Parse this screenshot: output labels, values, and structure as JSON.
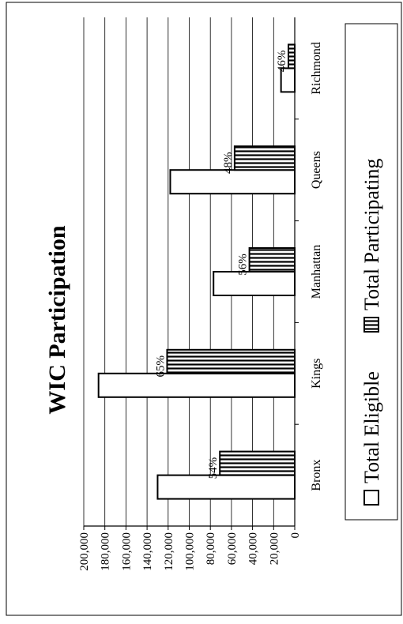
{
  "chart_data": {
    "type": "bar",
    "orientation": "rotated-90-ccw",
    "title": "WIC Participation",
    "categories": [
      "Bronx",
      "Kings",
      "Manhattan",
      "Queens",
      "Richmond"
    ],
    "series": [
      {
        "name": "Total Eligible",
        "values": [
          130000,
          186000,
          77000,
          118000,
          13000
        ]
      },
      {
        "name": "Total Participating",
        "values": [
          71000,
          121000,
          43000,
          57000,
          6000
        ]
      }
    ],
    "data_labels": [
      "54%",
      "65%",
      "56%",
      "48%",
      "46%"
    ],
    "ylim": [
      0,
      200000
    ],
    "yticks": [
      0,
      20000,
      40000,
      60000,
      80000,
      100000,
      120000,
      140000,
      160000,
      180000,
      200000
    ],
    "ytick_labels": [
      "0",
      "20,000",
      "40,000",
      "60,000",
      "80,000",
      "100,000",
      "120,000",
      "140,000",
      "160,000",
      "180,000",
      "200,000"
    ],
    "grid": true,
    "legend_position": "right"
  }
}
